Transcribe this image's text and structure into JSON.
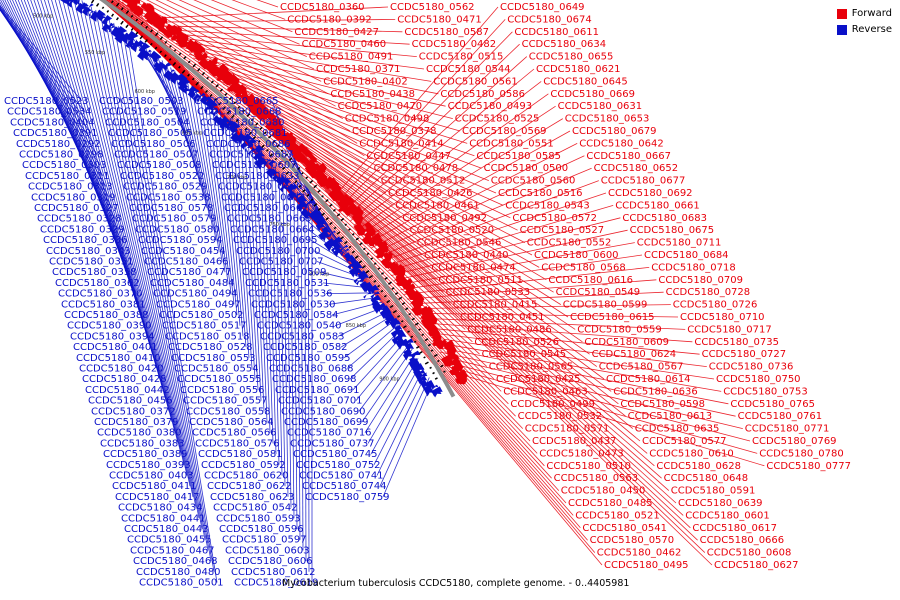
{
  "caption": "Mycobacterium tuberculosis CCDC5180, complete genome. - 0..4405981",
  "legend": [
    {
      "label": "Forward",
      "color": "#e8000b"
    },
    {
      "label": "Reverse",
      "color": "#0a10c8"
    }
  ],
  "colors": {
    "forward": "#e8000b",
    "reverse": "#0a10c8",
    "backbone": "#8c8c8c"
  },
  "axis_ticks": [
    "400 kbp",
    "450 kbp",
    "500 kbp",
    "550 kbp",
    "600 kbp",
    "650 kbp",
    "700 kbp",
    "750 kbp",
    "800 kbp",
    "850 kbp",
    "900 kbp"
  ],
  "forward_labels": [
    "CCDC5180_0360",
    "CCDC5180_0392",
    "CCDC5180_0427",
    "CCDC5180_0460",
    "CCDC5180_0491",
    "CCDC5180_0371",
    "CCDC5180_0402",
    "CCDC5180_0438",
    "CCDC5180_0470",
    "CCDC5180_0498",
    "CCDC5180_0378",
    "CCDC5180_0414",
    "CCDC5180_0447",
    "CCDC5180_0478",
    "CCDC5180_0512",
    "CCDC5180_0426",
    "CCDC5180_0461",
    "CCDC5180_0492",
    "CCDC5180_0520",
    "CCDC5180_0546",
    "CCDC5180_0440",
    "CCDC5180_0474",
    "CCDC5180_0511",
    "CCDC5180_0533",
    "CCDC5180_0415",
    "CCDC5180_0451",
    "CCDC5180_0486",
    "CCDC5180_0526",
    "CCDC5180_0545",
    "CCDC5180_0565",
    "CCDC5180_0425",
    "CCDC5180_0463",
    "CCDC5180_0499",
    "CCDC5180_0532",
    "CCDC5180_0571",
    "CCDC5180_0437",
    "CCDC5180_0473",
    "CCDC5180_0510",
    "CCDC5180_0563",
    "CCDC5180_0450",
    "CCDC5180_0485",
    "CCDC5180_0521",
    "CCDC5180_0541",
    "CCDC5180_0570",
    "CCDC5180_0462",
    "CCDC5180_0495",
    "CCDC5180_0562",
    "CCDC5180_0471",
    "CCDC5180_0587",
    "CCDC5180_0482",
    "CCDC5180_0515",
    "CCDC5180_0544",
    "CCDC5180_0561",
    "CCDC5180_0586",
    "CCDC5180_0493",
    "CCDC5180_0525",
    "CCDC5180_0569",
    "CCDC5180_0551",
    "CCDC5180_0585",
    "CCDC5180_0500",
    "CCDC5180_0560",
    "CCDC5180_0516",
    "CCDC5180_0543",
    "CCDC5180_0572",
    "CCDC5180_0527",
    "CCDC5180_0552",
    "CCDC5180_0600",
    "CCDC5180_0568",
    "CCDC5180_0616",
    "CCDC5180_0549",
    "CCDC5180_0599",
    "CCDC5180_0615",
    "CCDC5180_0559",
    "CCDC5180_0609",
    "CCDC5180_0624",
    "CCDC5180_0567",
    "CCDC5180_0614",
    "CCDC5180_0636",
    "CCDC5180_0598",
    "CCDC5180_0613",
    "CCDC5180_0635",
    "CCDC5180_0577",
    "CCDC5180_0610",
    "CCDC5180_0628",
    "CCDC5180_0648",
    "CCDC5180_0591",
    "CCDC5180_0639",
    "CCDC5180_0601",
    "CCDC5180_0617",
    "CCDC5180_0666",
    "CCDC5180_0608",
    "CCDC5180_0627",
    "CCDC5180_0649",
    "CCDC5180_0674",
    "CCDC5180_0611",
    "CCDC5180_0634",
    "CCDC5180_0655",
    "CCDC5180_0621",
    "CCDC5180_0645",
    "CCDC5180_0669",
    "CCDC5180_0631",
    "CCDC5180_0653",
    "CCDC5180_0679",
    "CCDC5180_0642",
    "CCDC5180_0667",
    "CCDC5180_0652",
    "CCDC5180_0677",
    "CCDC5180_0692",
    "CCDC5180_0661",
    "CCDC5180_0683",
    "CCDC5180_0675",
    "CCDC5180_0711",
    "CCDC5180_0684",
    "CCDC5180_0718",
    "CCDC5180_0709",
    "CCDC5180_0728",
    "CCDC5180_0726",
    "CCDC5180_0710",
    "CCDC5180_0717",
    "CCDC5180_0735",
    "CCDC5180_0727",
    "CCDC5180_0736",
    "CCDC5180_0750",
    "CCDC5180_0753",
    "CCDC5180_0765",
    "CCDC5180_0761",
    "CCDC5180_0771",
    "CCDC5180_0769",
    "CCDC5180_0780",
    "CCDC5180_0777"
  ],
  "reverse_labels": [
    "CCDC5180_0523",
    "CCDC5180_0534",
    "CCDC5180_0404",
    "CCDC5180_0391",
    "CCDC5180_0292",
    "CCDC5180_0298",
    "CCDC5180_0303",
    "CCDC5180_0311",
    "CCDC5180_0313",
    "CCDC5180_0319",
    "CCDC5180_0327",
    "CCDC5180_0328",
    "CCDC5180_0329",
    "CCDC5180_0336",
    "CCDC5180_0343",
    "CCDC5180_0351",
    "CCDC5180_0358",
    "CCDC5180_0362",
    "CCDC5180_0370",
    "CCDC5180_0381",
    "CCDC5180_0388",
    "CCDC5180_0390",
    "CCDC5180_0394",
    "CCDC5180_0401",
    "CCDC5180_0410",
    "CCDC5180_0420",
    "CCDC5180_0428",
    "CCDC5180_0442",
    "CCDC5180_0456",
    "CCDC5180_0372",
    "CCDC5180_0379",
    "CCDC5180_0380",
    "CCDC5180_0383",
    "CCDC5180_0389",
    "CCDC5180_0393",
    "CCDC5180_0403",
    "CCDC5180_0411",
    "CCDC5180_0417",
    "CCDC5180_0434",
    "CCDC5180_0441",
    "CCDC5180_0443",
    "CCDC5180_0455",
    "CCDC5180_0467",
    "CCDC5180_0468",
    "CCDC5180_0480",
    "CCDC5180_0501",
    "CCDC5180_0503",
    "CCDC5180_0519",
    "CCDC5180_0504",
    "CCDC5180_0505",
    "CCDC5180_0506",
    "CCDC5180_0507",
    "CCDC5180_0508",
    "CCDC5180_0522",
    "CCDC5180_0529",
    "CCDC5180_0538",
    "CCDC5180_0578",
    "CCDC5180_0579",
    "CCDC5180_0580",
    "CCDC5180_0594",
    "CCDC5180_0454",
    "CCDC5180_0466",
    "CCDC5180_0477",
    "CCDC5180_0484",
    "CCDC5180_0494",
    "CCDC5180_0497",
    "CCDC5180_0502",
    "CCDC5180_0517",
    "CCDC5180_0518",
    "CCDC5180_0528",
    "CCDC5180_0553",
    "CCDC5180_0554",
    "CCDC5180_0555",
    "CCDC5180_0556",
    "CCDC5180_0557",
    "CCDC5180_0558",
    "CCDC5180_0564",
    "CCDC5180_0566",
    "CCDC5180_0576",
    "CCDC5180_0581",
    "CCDC5180_0592",
    "CCDC5180_0620",
    "CCDC5180_0622",
    "CCDC5180_0623",
    "CCDC5180_0542",
    "CCDC5180_0593",
    "CCDC5180_0596",
    "CCDC5180_0597",
    "CCDC5180_0603",
    "CCDC5180_0606",
    "CCDC5180_0612",
    "CCDC5180_0619",
    "CCDC5180_0665",
    "CCDC5180_0668",
    "CCDC5180_0680",
    "CCDC5180_0681",
    "CCDC5180_0686",
    "CCDC5180_0687",
    "CCDC5180_0607",
    "CCDC5180_0633",
    "CCDC5180_0640",
    "CCDC5180_0632",
    "CCDC5180_0662",
    "CCDC5180_0663",
    "CCDC5180_0664",
    "CCDC5180_0695",
    "CCDC5180_0700",
    "CCDC5180_0707",
    "CCDC5180_0509",
    "CCDC5180_0531",
    "CCDC5180_0536",
    "CCDC5180_0530",
    "CCDC5180_0584",
    "CCDC5180_0540",
    "CCDC5180_0583",
    "CCDC5180_0582",
    "CCDC5180_0595",
    "CCDC5180_0688",
    "CCDC5180_0698",
    "CCDC5180_0691",
    "CCDC5180_0701",
    "CCDC5180_0690",
    "CCDC5180_0699",
    "CCDC5180_0716",
    "CCDC5180_0737",
    "CCDC5180_0745",
    "CCDC5180_0752",
    "CCDC5180_0741",
    "CCDC5180_0744",
    "CCDC5180_0759"
  ]
}
